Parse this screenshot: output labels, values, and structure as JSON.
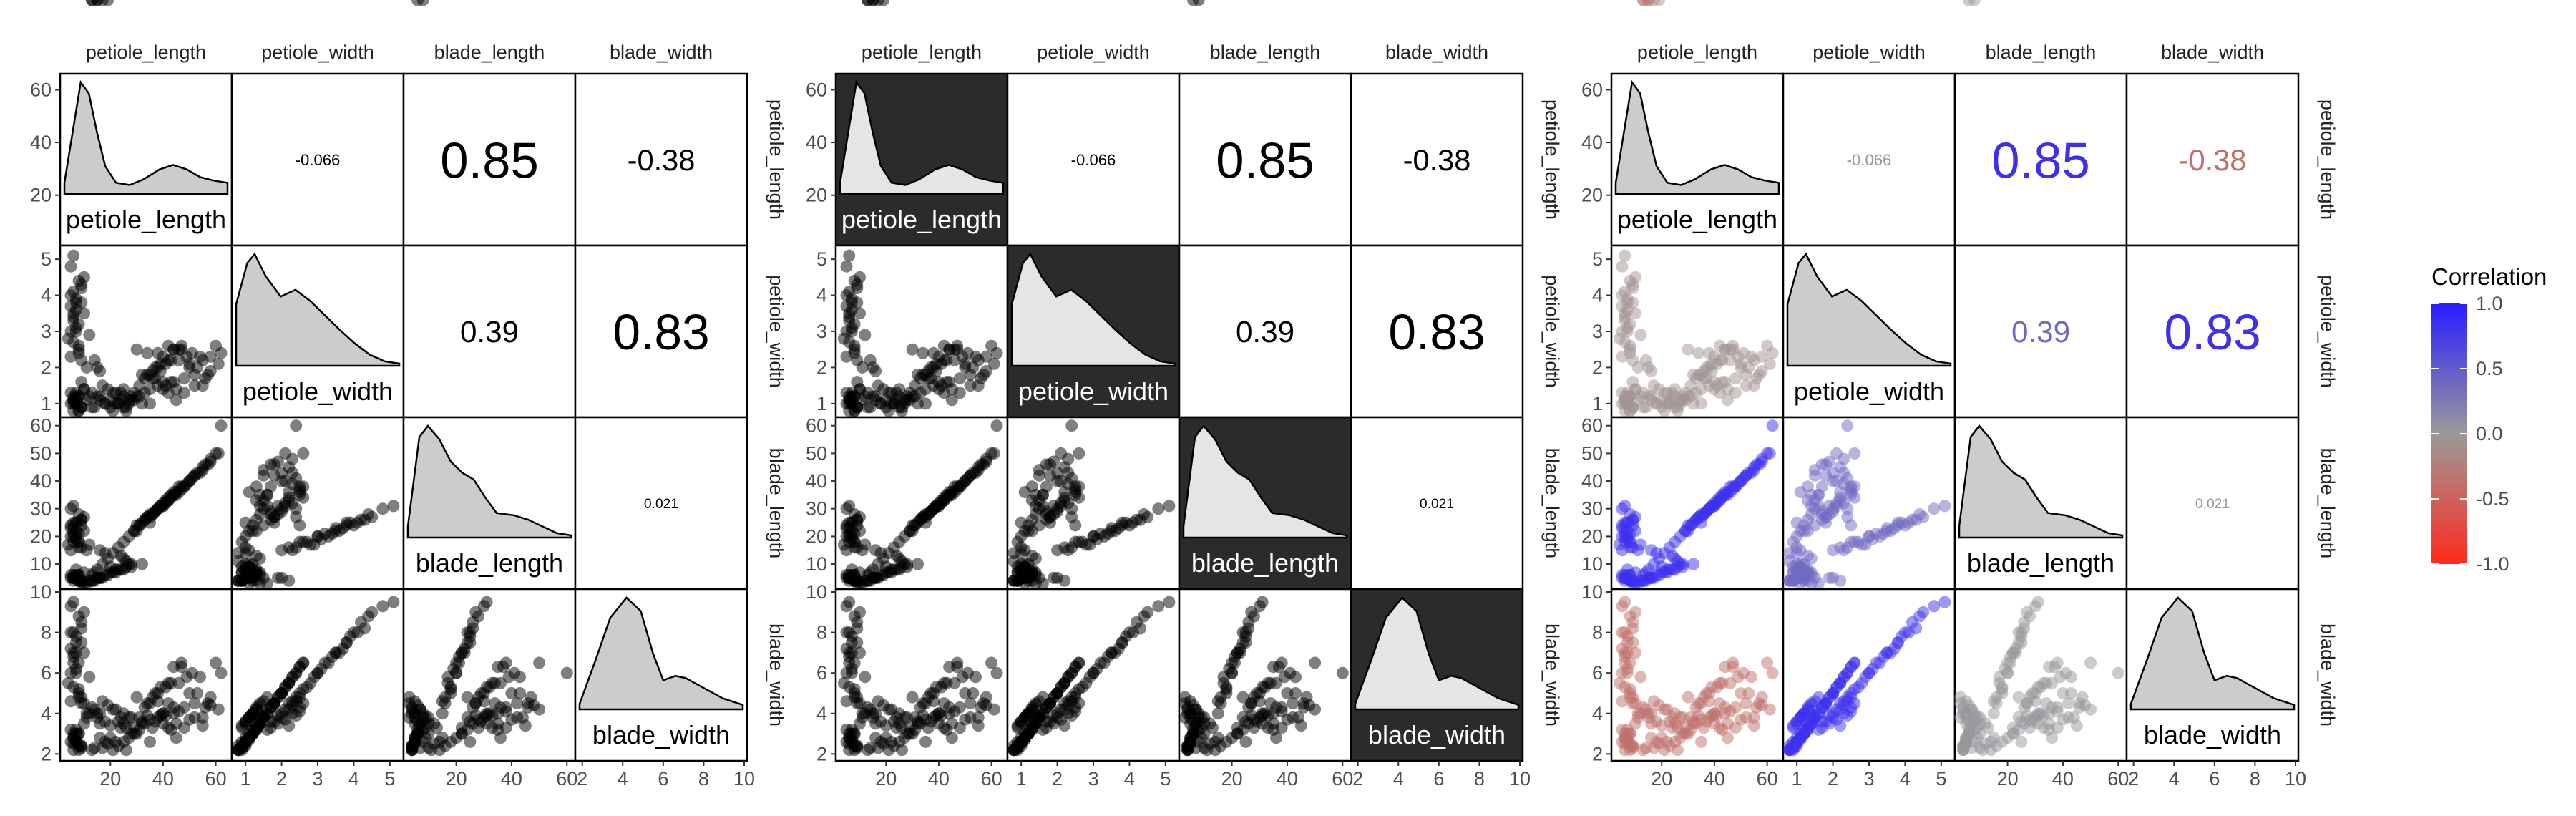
{
  "variables": [
    "petiole_length",
    "petiole_width",
    "blade_length",
    "blade_width"
  ],
  "legend": {
    "title": "Correlation",
    "ticks": [
      1.0,
      0.5,
      0.0,
      -0.5,
      -1.0
    ],
    "tick_labels": [
      "1.0",
      "0.5",
      "0.0",
      "-0.5",
      "-1.0"
    ]
  },
  "colors": {
    "positive": "#2b1cff",
    "neutral": "#9a9a9a",
    "negative": "#ff2a1c",
    "panel_dark": "#2b2b2b",
    "density_fill": "#cccccc"
  },
  "chart_data": {
    "type": "scatter",
    "title": "",
    "panels": [
      "pairs",
      "pairs-highlighted-diagonal",
      "pairs-correlation-colored"
    ],
    "axes": {
      "petiole_length": {
        "range": [
          2,
          65
        ],
        "ticks": [
          20,
          40,
          60
        ],
        "tick_labels": [
          "20",
          "40",
          "60"
        ],
        "y_ticks": [
          20,
          40,
          60
        ],
        "y_tick_labels": [
          "20",
          "40",
          "60"
        ]
      },
      "petiole_width": {
        "range": [
          0.7,
          5.3
        ],
        "ticks": [
          1,
          2,
          3,
          4,
          5
        ],
        "tick_labels": [
          "1",
          "2",
          "3",
          "4",
          "5"
        ],
        "y_ticks": [
          1,
          2,
          3,
          4,
          5
        ],
        "y_tick_labels": [
          "1",
          "2",
          "3",
          "4",
          "5"
        ]
      },
      "blade_length": {
        "range": [
          2,
          62
        ],
        "ticks": [
          20,
          40,
          60
        ],
        "tick_labels": [
          "20",
          "40",
          "60"
        ],
        "y_ticks": [
          10,
          20,
          30,
          40,
          50,
          60
        ],
        "y_tick_labels": [
          "10",
          "20",
          "30",
          "40",
          "50",
          "60"
        ]
      },
      "blade_width": {
        "range": [
          1.8,
          10
        ],
        "ticks": [
          2,
          4,
          6,
          8,
          10
        ],
        "tick_labels": [
          "2",
          "4",
          "6",
          "8",
          "10"
        ],
        "y_ticks": [
          2,
          4,
          6,
          8,
          10
        ],
        "y_tick_labels": [
          "2",
          "4",
          "6",
          "8",
          "10"
        ]
      }
    },
    "correlations": [
      {
        "row": "petiole_length",
        "col": "petiole_width",
        "value": -0.066,
        "label": "-0.066"
      },
      {
        "row": "petiole_length",
        "col": "blade_length",
        "value": 0.85,
        "label": "0.85"
      },
      {
        "row": "petiole_length",
        "col": "blade_width",
        "value": -0.38,
        "label": "-0.38"
      },
      {
        "row": "petiole_width",
        "col": "blade_length",
        "value": 0.39,
        "label": "0.39"
      },
      {
        "row": "petiole_width",
        "col": "blade_width",
        "value": 0.83,
        "label": "0.83"
      },
      {
        "row": "blade_length",
        "col": "blade_width",
        "value": 0.021,
        "label": "0.021"
      }
    ],
    "densities": {
      "petiole_length": [
        [
          3,
          0.1
        ],
        [
          6,
          0.55
        ],
        [
          9,
          1.0
        ],
        [
          12,
          0.9
        ],
        [
          15,
          0.55
        ],
        [
          18,
          0.25
        ],
        [
          22,
          0.1
        ],
        [
          27,
          0.08
        ],
        [
          32,
          0.13
        ],
        [
          38,
          0.22
        ],
        [
          43,
          0.26
        ],
        [
          48,
          0.22
        ],
        [
          53,
          0.15
        ],
        [
          58,
          0.12
        ],
        [
          63,
          0.1
        ]
      ],
      "petiole_width": [
        [
          0.8,
          0.55
        ],
        [
          1.1,
          0.92
        ],
        [
          1.3,
          1.0
        ],
        [
          1.6,
          0.8
        ],
        [
          2.0,
          0.62
        ],
        [
          2.4,
          0.68
        ],
        [
          2.8,
          0.58
        ],
        [
          3.2,
          0.45
        ],
        [
          3.6,
          0.32
        ],
        [
          4.0,
          0.2
        ],
        [
          4.4,
          0.1
        ],
        [
          4.8,
          0.04
        ],
        [
          5.2,
          0.02
        ]
      ],
      "blade_length": [
        [
          3,
          0.1
        ],
        [
          7,
          0.9
        ],
        [
          10,
          1.0
        ],
        [
          14,
          0.88
        ],
        [
          18,
          0.68
        ],
        [
          22,
          0.58
        ],
        [
          26,
          0.52
        ],
        [
          30,
          0.36
        ],
        [
          34,
          0.22
        ],
        [
          40,
          0.2
        ],
        [
          45,
          0.16
        ],
        [
          50,
          0.1
        ],
        [
          55,
          0.04
        ],
        [
          60,
          0.02
        ]
      ],
      "blade_width": [
        [
          2,
          0.05
        ],
        [
          2.8,
          0.45
        ],
        [
          3.5,
          0.82
        ],
        [
          4.3,
          1.0
        ],
        [
          5.0,
          0.88
        ],
        [
          5.6,
          0.5
        ],
        [
          6.1,
          0.26
        ],
        [
          6.7,
          0.3
        ],
        [
          7.2,
          0.28
        ],
        [
          8.0,
          0.2
        ],
        [
          9.0,
          0.1
        ],
        [
          10,
          0.04
        ]
      ]
    },
    "observations": {
      "petiole_length": [
        5,
        9,
        6,
        8,
        7,
        4,
        10,
        6,
        5,
        8,
        7,
        9,
        11,
        6,
        5,
        7,
        8,
        6,
        9,
        7,
        12,
        5,
        6,
        8,
        10,
        7,
        6,
        9,
        8,
        5,
        13,
        6,
        7,
        8,
        6,
        9,
        5,
        7,
        6,
        8,
        7,
        9,
        10,
        5,
        6,
        8,
        7,
        6,
        9,
        8,
        7,
        14,
        20,
        22,
        28,
        25,
        26,
        18,
        24,
        16,
        30,
        35,
        38,
        42,
        40,
        45,
        44,
        48,
        50,
        52,
        55,
        58,
        43,
        47,
        57,
        49,
        53,
        60,
        62,
        41,
        46,
        36,
        33,
        31,
        29,
        34,
        37,
        39,
        44,
        47,
        51,
        54,
        42,
        38,
        35,
        40,
        45,
        48,
        52,
        56,
        32,
        28,
        25,
        22,
        18,
        15,
        26,
        24,
        21,
        19,
        17,
        16,
        27,
        23,
        20,
        13,
        12,
        11,
        10,
        9,
        14,
        15,
        16,
        44,
        40,
        36,
        32,
        42,
        38,
        30,
        34,
        46,
        50,
        55,
        58,
        61,
        39,
        37,
        43,
        41,
        35,
        33,
        31,
        29,
        27,
        25,
        23,
        21,
        19,
        17,
        15,
        13
      ],
      "petiole_width": [
        3.0,
        4.2,
        3.5,
        2.5,
        3.8,
        2.8,
        4.5,
        5.1,
        4.0,
        3.2,
        3.6,
        2.2,
        2.0,
        3.3,
        4.8,
        3.9,
        2.6,
        3.4,
        4.3,
        3.1,
        2.9,
        3.7,
        4.1,
        2.4,
        3.5,
        3.0,
        2.7,
        3.8,
        4.4,
        2.3,
        0.9,
        1.0,
        1.2,
        0.8,
        1.1,
        0.9,
        1.3,
        1.0,
        0.8,
        1.2,
        1.1,
        0.9,
        1.4,
        1.0,
        1.2,
        0.8,
        1.0,
        1.1,
        0.9,
        1.2,
        1.3,
        0.9,
        1.1,
        1.0,
        1.2,
        1.4,
        0.8,
        1.0,
        1.3,
        1.1,
        1.2,
        1.0,
        1.5,
        1.3,
        1.4,
        1.1,
        1.6,
        1.7,
        2.0,
        1.8,
        1.5,
        1.9,
        2.2,
        2.5,
        1.8,
        2.3,
        2.0,
        2.6,
        2.4,
        2.1,
        2.2,
        1.9,
        1.7,
        1.5,
        1.3,
        1.8,
        2.0,
        2.1,
        2.5,
        2.6,
        2.4,
        2.3,
        2.2,
        2.0,
        1.8,
        1.6,
        1.4,
        1.3,
        1.5,
        1.7,
        1.0,
        1.1,
        1.2,
        1.3,
        1.0,
        1.2,
        0.9,
        1.1,
        1.3,
        1.4,
        1.5,
        1.2,
        1.1,
        1.0,
        0.9,
        1.3,
        1.2,
        1.1,
        1.4,
        1.6,
        2.2,
        2.0,
        1.9,
        2.5,
        2.3,
        1.7,
        1.8,
        2.6,
        2.4,
        2.5,
        2.4,
        2.5,
        2.1,
        2.2,
        2.3,
        2.1,
        1.9,
        1.7,
        1.6,
        1.5,
        1.4,
        1.3,
        1.2,
        1.1,
        1.0,
        0.9,
        1.0,
        0.8
      ],
      "blade_length": [
        20,
        26,
        23,
        18,
        25,
        17,
        27,
        31,
        24,
        21,
        22,
        16,
        15,
        20,
        30,
        25,
        18,
        21,
        26,
        19,
        17,
        23,
        25,
        16,
        22,
        20,
        18,
        24,
        28,
        15,
        4,
        5,
        6,
        4,
        5,
        4,
        6,
        5,
        4,
        6,
        5,
        4,
        7,
        5,
        6,
        4,
        5,
        5,
        4,
        6,
        8,
        7,
        9,
        8,
        10,
        12,
        11,
        14,
        13,
        15,
        22,
        25,
        30,
        33,
        31,
        36,
        35,
        38,
        40,
        42,
        44,
        47,
        34,
        37,
        46,
        39,
        43,
        50,
        60,
        32,
        36,
        28,
        26,
        24,
        22,
        27,
        29,
        31,
        35,
        38,
        41,
        43,
        33,
        30,
        27,
        31,
        35,
        38,
        42,
        46,
        10,
        9,
        8,
        7,
        6,
        5,
        9,
        8,
        7,
        6,
        5,
        5,
        10,
        8,
        7,
        4,
        4,
        3,
        3,
        3,
        4,
        5,
        5,
        36,
        32,
        28,
        25,
        34,
        30,
        24,
        27,
        38,
        40,
        45,
        48,
        50,
        31,
        29,
        35,
        33,
        28,
        26,
        24,
        22,
        20,
        18,
        16,
        14,
        12,
        10,
        8,
        6
      ],
      "blade_width": [
        6,
        8.5,
        7,
        5,
        7.5,
        5.5,
        9,
        9.5,
        8,
        6.5,
        7,
        4.5,
        4,
        6.5,
        9.3,
        7.8,
        5.2,
        6.8,
        8.2,
        6.2,
        5.8,
        7.2,
        8,
        4.8,
        7,
        6,
        5.3,
        7.5,
        8.8,
        4.6,
        2.2,
        2.5,
        3,
        2.4,
        2.8,
        2.3,
        3.2,
        2.6,
        2.2,
        3,
        2.7,
        2.4,
        3.5,
        2.6,
        3,
        2.2,
        2.6,
        2.8,
        2.4,
        3,
        3.2,
        2.3,
        2.8,
        2.6,
        3,
        3.5,
        2.2,
        2.6,
        3.3,
        2.8,
        3,
        2.6,
        3.8,
        3.3,
        3.5,
        2.8,
        4,
        4.3,
        5,
        4.5,
        3.8,
        4.8,
        5.5,
        6.3,
        4.5,
        5.8,
        5,
        6.5,
        6,
        5.3,
        5.5,
        4.8,
        4.3,
        3.8,
        3.3,
        4.5,
        5,
        5.3,
        6.3,
        6.5,
        6,
        5.8,
        5.5,
        5,
        4.5,
        4,
        3.5,
        3.3,
        3.8,
        4.3,
        3.5,
        3.8,
        4,
        4.2,
        3.6,
        4,
        3.3,
        3.8,
        4.2,
        4.4,
        4.6,
        4,
        3.8,
        3.6,
        3.4,
        4.3,
        4,
        3.8,
        4.5,
        4.8,
        4.2,
        3.8,
        3.5,
        4.3,
        4,
        3.3,
        3.6,
        4.5,
        4.6,
        4.8,
        3.9,
        4.1,
        3.7,
        3.4,
        4.4,
        4.2,
        3.9,
        3.6,
        3.2,
        3.9,
        3.7,
        3.5,
        3.2,
        3,
        2.8,
        2.6,
        2.4,
        2.2,
        2.5,
        2.3
      ]
    }
  }
}
